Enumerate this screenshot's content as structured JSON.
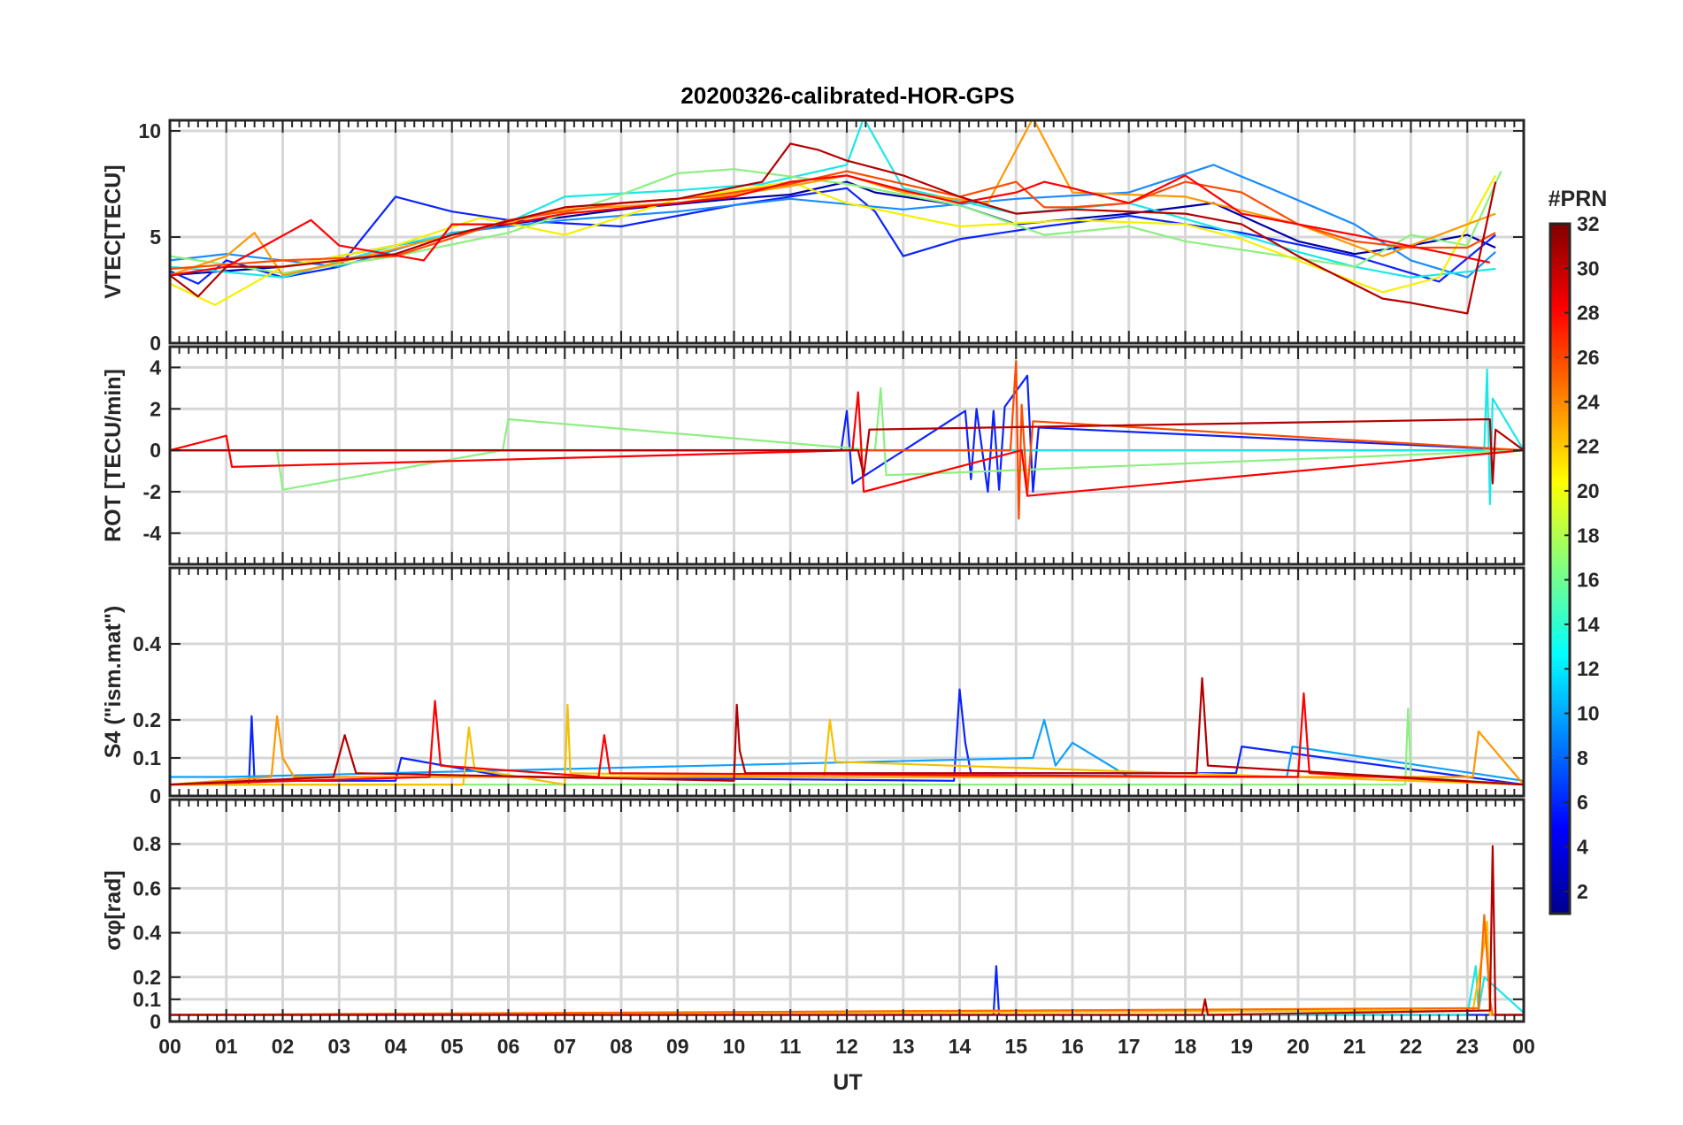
{
  "chart_data": {
    "type": "line",
    "title": "20200326-calibrated-HOR-GPS",
    "xlabel": "UT",
    "x_ticks": [
      "00",
      "01",
      "02",
      "03",
      "04",
      "05",
      "06",
      "07",
      "08",
      "09",
      "10",
      "11",
      "12",
      "13",
      "14",
      "15",
      "16",
      "17",
      "18",
      "19",
      "20",
      "21",
      "22",
      "23",
      "00"
    ],
    "xlim": [
      0,
      24
    ],
    "colorbar": {
      "label": "#PRN",
      "ticks": [
        "32",
        "30",
        "28",
        "26",
        "24",
        "22",
        "20",
        "18",
        "16",
        "14",
        "12",
        "10",
        "8",
        "6",
        "4",
        "2"
      ],
      "range": [
        1,
        32
      ],
      "colormap": [
        "#00008f",
        "#0000ff",
        "#0080ff",
        "#00ffff",
        "#80ff80",
        "#ffff00",
        "#ff8000",
        "#ff0000",
        "#800000"
      ]
    },
    "panels": [
      {
        "ylabel": "VTEC[TECU]",
        "ylim": [
          0,
          10.5
        ],
        "yticks": [
          0,
          5,
          10
        ],
        "ytick_labels": [
          "0",
          "5",
          "10"
        ],
        "series": [
          {
            "name": "PRN 2",
            "color": "#0000a8",
            "x": [
              0.0,
              2,
              4,
              6,
              8,
              10,
              11,
              12,
              12.5,
              14,
              15,
              17,
              18.5,
              20,
              21,
              22,
              23,
              23.5
            ],
            "y": [
              3.2,
              3.6,
              4.6,
              5.6,
              6.3,
              6.8,
              7,
              7.6,
              7.1,
              6.5,
              5.6,
              6.1,
              6.6,
              4.8,
              4.2,
              4.6,
              5.1,
              4.5
            ]
          },
          {
            "name": "PRN 5",
            "color": "#0b24ff",
            "x": [
              0.0,
              0.5,
              1,
              2,
              3,
              4,
              5,
              6,
              8,
              10,
              12,
              12.5,
              13,
              14,
              15.5,
              17,
              19,
              21,
              22.5,
              23.5
            ],
            "y": [
              3.4,
              2.8,
              3.9,
              3.1,
              3.6,
              6.9,
              6.2,
              5.8,
              5.5,
              6.5,
              7.3,
              6.2,
              4.1,
              4.9,
              5.5,
              6.0,
              5.2,
              4.1,
              2.9,
              5.1
            ]
          },
          {
            "name": "PRN 9",
            "color": "#1a8cff",
            "x": [
              0.0,
              1,
              3,
              5,
              7,
              9,
              11,
              13,
              15,
              17,
              18.5,
              19.5,
              21,
              22,
              23,
              23.5
            ],
            "y": [
              3.9,
              4.2,
              3.6,
              5.2,
              5.8,
              6.2,
              6.8,
              6.3,
              6.8,
              7.1,
              8.4,
              7.3,
              5.6,
              3.9,
              3.1,
              4.3
            ]
          },
          {
            "name": "PRN 13",
            "color": "#18e8e8",
            "x": [
              0.0,
              2,
              4,
              6,
              7,
              9,
              10.5,
              12,
              12.3,
              13,
              15,
              17,
              19,
              20,
              21,
              22,
              23.5
            ],
            "y": [
              3.6,
              3.1,
              4.6,
              5.7,
              6.9,
              7.2,
              7.5,
              8.4,
              10.6,
              7.3,
              6.1,
              6.6,
              5.1,
              4.3,
              3.6,
              3.1,
              3.5
            ]
          },
          {
            "name": "PRN 17",
            "color": "#8cf080",
            "x": [
              0.0,
              2,
              4,
              6,
              8,
              9,
              10,
              12,
              14,
              15.5,
              17,
              18,
              19.5,
              21,
              22,
              23,
              23.6
            ],
            "y": [
              4.1,
              3.3,
              4.1,
              5.2,
              7.0,
              8.0,
              8.2,
              7.5,
              6.5,
              5.1,
              5.5,
              4.8,
              4.2,
              3.6,
              5.1,
              4.6,
              8.1
            ]
          },
          {
            "name": "PRN 21",
            "color": "#f5f000",
            "x": [
              0.0,
              0.8,
              2,
              4,
              5.5,
              7,
              9,
              11,
              12,
              14,
              16,
              18,
              19,
              20.5,
              21.5,
              22.5,
              23.5
            ],
            "y": [
              2.8,
              1.8,
              3.6,
              4.6,
              5.9,
              5.1,
              6.8,
              7.6,
              6.6,
              5.5,
              5.8,
              5.6,
              4.9,
              3.4,
              2.4,
              3.1,
              7.9
            ]
          },
          {
            "name": "PRN 24",
            "color": "#ff9800",
            "x": [
              0.0,
              1,
              1.5,
              2,
              3,
              5,
              7,
              9,
              11,
              12,
              13,
              14.5,
              15,
              15.3,
              16,
              18,
              20,
              21.5,
              23.5
            ],
            "y": [
              3.2,
              4.1,
              5.2,
              3.2,
              3.8,
              5.1,
              6.3,
              6.6,
              7.4,
              7.9,
              7.1,
              6.6,
              9.1,
              10.6,
              7.1,
              6.9,
              5.6,
              4.1,
              6.1
            ]
          },
          {
            "name": "PRN 26",
            "color": "#ff4a00",
            "x": [
              0.0,
              2,
              4,
              6,
              8,
              9.5,
              11,
              12,
              14,
              15,
              15.5,
              16,
              17,
              18,
              19,
              20,
              21,
              22,
              23,
              23.5
            ],
            "y": [
              3.5,
              3.9,
              4.1,
              5.8,
              6.6,
              6.9,
              7.5,
              8.1,
              6.9,
              7.6,
              6.4,
              6.4,
              6.6,
              7.6,
              7.1,
              5.6,
              4.8,
              4.5,
              4.5,
              5.2
            ]
          },
          {
            "name": "PRN 28",
            "color": "#ff0000",
            "x": [
              0.0,
              1,
              2.5,
              3,
              4.5,
              5,
              6,
              7,
              9,
              10,
              11,
              12,
              13,
              14,
              15,
              15.5,
              16,
              17,
              18,
              19,
              20,
              21,
              22.5,
              23.4
            ],
            "y": [
              3.2,
              3.6,
              5.8,
              4.6,
              3.9,
              5.6,
              5.6,
              6.1,
              6.6,
              6.9,
              7.6,
              7.9,
              7.2,
              6.6,
              7.1,
              7.6,
              7.3,
              6.6,
              7.9,
              6.1,
              5.6,
              5.1,
              4.3,
              3.8
            ]
          },
          {
            "name": "PRN 30",
            "color": "#b40000",
            "x": [
              0.0,
              0.5,
              1,
              2,
              4,
              5,
              7,
              9,
              10.5,
              11,
              11.5,
              12,
              13,
              14,
              15,
              16,
              18,
              19,
              20,
              21.5,
              22,
              23,
              23.5
            ],
            "y": [
              3.2,
              2.2,
              3.6,
              3.6,
              4.2,
              5.1,
              6.4,
              6.8,
              7.6,
              9.4,
              9.1,
              8.6,
              7.9,
              6.9,
              6.1,
              6.3,
              6.1,
              5.6,
              4.1,
              2.1,
              1.9,
              1.4,
              7.6
            ]
          }
        ]
      },
      {
        "ylabel": "ROT [TECU/min]",
        "ylim": [
          -5.5,
          5
        ],
        "yticks": [
          -4,
          -2,
          0,
          2,
          4
        ],
        "ytick_labels": [
          "-4",
          "-2",
          "0",
          "2",
          "4"
        ],
        "series": [
          {
            "name": "PRN 5",
            "color": "#0b24ff",
            "x": [
              0.0,
              11.9,
              12.0,
              12.1,
              14.1,
              14.2,
              14.3,
              14.5,
              14.6,
              14.7,
              14.8,
              15.2,
              15.3,
              15.4,
              24
            ],
            "y": [
              0,
              0,
              1.9,
              -1.6,
              1.9,
              -1.4,
              2.0,
              -2.0,
              1.9,
              -1.9,
              2.1,
              3.6,
              -2.0,
              1.1,
              0
            ]
          },
          {
            "name": "PRN 13",
            "color": "#18e8e8",
            "x": [
              0.0,
              23.3,
              23.35,
              23.4,
              23.45,
              24
            ],
            "y": [
              0,
              0,
              3.9,
              -2.6,
              2.5,
              0
            ]
          },
          {
            "name": "PRN 17",
            "color": "#8cf080",
            "x": [
              0.0,
              1.9,
              2.0,
              5.9,
              6.0,
              12.5,
              12.6,
              12.7,
              24
            ],
            "y": [
              0,
              0,
              -1.9,
              0,
              1.5,
              0,
              3.0,
              -1.2,
              0
            ]
          },
          {
            "name": "PRN 26",
            "color": "#ff4a00",
            "x": [
              0.0,
              14.9,
              15.0,
              15.05,
              15.1,
              15.2,
              15.3,
              24
            ],
            "y": [
              0,
              0,
              4.3,
              -3.3,
              2.2,
              -2.1,
              1.4,
              0
            ]
          },
          {
            "name": "PRN 28",
            "color": "#ff0000",
            "x": [
              0.0,
              1.0,
              1.1,
              12.1,
              12.2,
              12.3,
              15.1,
              15.2,
              24
            ],
            "y": [
              0,
              0.7,
              -0.8,
              0,
              2.8,
              -2.0,
              0,
              -2.2,
              0
            ]
          },
          {
            "name": "PRN 30",
            "color": "#b40000",
            "x": [
              0.0,
              12.2,
              12.3,
              12.4,
              23.4,
              23.45,
              23.5,
              24
            ],
            "y": [
              0,
              0,
              -1.2,
              1.0,
              1.5,
              -1.6,
              1.0,
              0
            ]
          }
        ]
      },
      {
        "ylabel": "S4 (\"ism.mat\")",
        "ylim": [
          0,
          0.6
        ],
        "yticks": [
          0,
          0.1,
          0.2,
          0.4
        ],
        "ytick_labels": [
          "0",
          "0.1",
          "0.2",
          "0.4"
        ],
        "series": [
          {
            "name": "PRN 5",
            "color": "#0b24ff",
            "x": [
              0.0,
              1.4,
              1.45,
              1.5,
              4.0,
              4.1,
              6.0,
              13.9,
              14.0,
              14.1,
              14.2,
              18.9,
              19.0,
              24
            ],
            "y": [
              0.03,
              0.03,
              0.21,
              0.04,
              0.04,
              0.1,
              0.05,
              0.04,
              0.28,
              0.14,
              0.06,
              0.06,
              0.13,
              0.03
            ]
          },
          {
            "name": "PRN 10",
            "color": "#0fa0ff",
            "x": [
              0.0,
              1.0,
              15.3,
              15.5,
              15.7,
              16.0,
              17.0,
              19.8,
              19.9,
              24
            ],
            "y": [
              0.05,
              0.05,
              0.1,
              0.2,
              0.08,
              0.14,
              0.05,
              0.05,
              0.13,
              0.04
            ]
          },
          {
            "name": "PRN 17",
            "color": "#8cf080",
            "x": [
              0.0,
              21.9,
              21.95,
              22.0,
              24
            ],
            "y": [
              0.03,
              0.03,
              0.23,
              0.05,
              0.03
            ]
          },
          {
            "name": "PRN 22",
            "color": "#f5c000",
            "x": [
              0.0,
              5.2,
              5.3,
              5.4,
              7.0,
              7.05,
              7.1,
              11.6,
              11.7,
              11.8,
              24
            ],
            "y": [
              0.03,
              0.03,
              0.18,
              0.07,
              0.03,
              0.24,
              0.06,
              0.05,
              0.2,
              0.09,
              0.03
            ]
          },
          {
            "name": "PRN 24",
            "color": "#ff9800",
            "x": [
              0.0,
              1.8,
              1.9,
              2.0,
              2.2,
              23.1,
              23.2,
              24
            ],
            "y": [
              0.03,
              0.05,
              0.21,
              0.1,
              0.05,
              0.05,
              0.17,
              0.03
            ]
          },
          {
            "name": "PRN 28",
            "color": "#ff0000",
            "x": [
              0.0,
              4.6,
              4.7,
              4.8,
              7.6,
              7.7,
              7.8,
              20.0,
              20.1,
              20.2,
              24
            ],
            "y": [
              0.03,
              0.05,
              0.25,
              0.08,
              0.05,
              0.16,
              0.06,
              0.05,
              0.27,
              0.06,
              0.03
            ]
          },
          {
            "name": "PRN 30",
            "color": "#b40000",
            "x": [
              0.0,
              2.9,
              3.1,
              3.3,
              10.0,
              10.05,
              10.1,
              10.2,
              18.2,
              18.3,
              18.4,
              24
            ],
            "y": [
              0.03,
              0.05,
              0.16,
              0.06,
              0.04,
              0.24,
              0.12,
              0.06,
              0.06,
              0.31,
              0.08,
              0.03
            ]
          }
        ]
      },
      {
        "ylabel": "σφ[rad]",
        "ylim": [
          0,
          1.0
        ],
        "yticks": [
          0,
          0.1,
          0.2,
          0.4,
          0.6,
          0.8
        ],
        "ytick_labels": [
          "0",
          "0.1",
          "0.2",
          "0.4",
          "0.6",
          "0.8"
        ],
        "series": [
          {
            "name": "PRN 5",
            "color": "#0b24ff",
            "x": [
              0.0,
              14.6,
              14.65,
              14.7,
              24
            ],
            "y": [
              0.03,
              0.03,
              0.25,
              0.03,
              0.03
            ]
          },
          {
            "name": "PRN 13",
            "color": "#18e8e8",
            "x": [
              0.0,
              23.0,
              23.15,
              23.2,
              23.3,
              24
            ],
            "y": [
              0.03,
              0.03,
              0.25,
              0.05,
              0.2,
              0.04
            ]
          },
          {
            "name": "PRN 22",
            "color": "#f5c000",
            "x": [
              0.0,
              23.1,
              23.3,
              23.35,
              23.4,
              24
            ],
            "y": [
              0.03,
              0.05,
              0.35,
              0.45,
              0.03,
              0.03
            ]
          },
          {
            "name": "PRN 25",
            "color": "#ff6a00",
            "x": [
              0.0,
              23.2,
              23.3,
              23.4,
              23.45,
              24
            ],
            "y": [
              0.03,
              0.06,
              0.48,
              0.1,
              0.03,
              0.03
            ]
          },
          {
            "name": "PRN 30",
            "color": "#b40000",
            "x": [
              0.0,
              18.3,
              18.35,
              18.4,
              23.4,
              23.45,
              23.5,
              24
            ],
            "y": [
              0.03,
              0.03,
              0.1,
              0.03,
              0.05,
              0.79,
              0.03,
              0.03
            ]
          }
        ]
      }
    ]
  }
}
